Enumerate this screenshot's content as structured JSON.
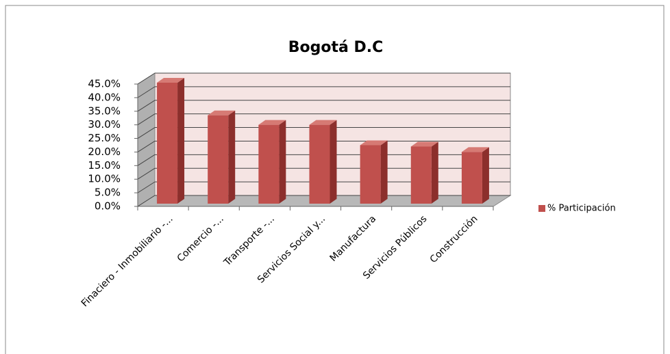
{
  "chart_data": {
    "type": "bar3d",
    "title": "Bogotá D.C",
    "categories": [
      "Finaciero - Inmobiliario -...",
      "Comercio -...",
      "Transporte -...",
      "Servicios Social y...",
      "Manufactura",
      "Servicios Públicos",
      "Construcción"
    ],
    "series": [
      {
        "name": "% Participación",
        "color": "#c0504d",
        "values": [
          44.5,
          32.5,
          29,
          29,
          21.5,
          21,
          19
        ]
      }
    ],
    "ylim": [
      0,
      45
    ],
    "yticks": [
      {
        "value": 0,
        "label": "0.0%"
      },
      {
        "value": 5,
        "label": "5.0%"
      },
      {
        "value": 10,
        "label": "10.0%"
      },
      {
        "value": 15,
        "label": "15.0%"
      },
      {
        "value": 20,
        "label": "20.0%"
      },
      {
        "value": 25,
        "label": "25.0%"
      },
      {
        "value": 30,
        "label": "30.0%"
      },
      {
        "value": 35,
        "label": "35.0%"
      },
      {
        "value": 40,
        "label": "40.0%"
      },
      {
        "value": 45,
        "label": "45.0%"
      }
    ],
    "grid": true,
    "legend": "right"
  }
}
